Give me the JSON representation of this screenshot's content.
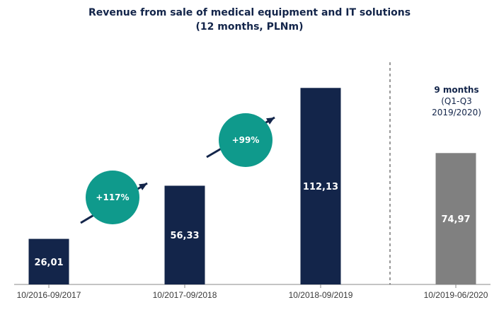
{
  "chart_data": {
    "type": "bar",
    "title": "Revenue from sale of medical equipment and IT solutions",
    "subtitle": "(12 months, PLNm)",
    "xlabel": "",
    "ylabel": "",
    "ylim": [
      0,
      130
    ],
    "grid": false,
    "categories": [
      "10/2016-09/2017",
      "10/2017-09/2018",
      "10/2018-09/2019",
      "10/2019-06/2020"
    ],
    "values": [
      26.01,
      56.33,
      112.13,
      74.97
    ],
    "value_labels": [
      "26,01",
      "56,33",
      "112,13",
      "74,97"
    ],
    "bar_colors": [
      "#13254a",
      "#13254a",
      "#13254a",
      "#808080"
    ],
    "growth_annotations": [
      {
        "label": "+117%",
        "between": [
          "10/2016-09/2017",
          "10/2017-09/2018"
        ]
      },
      {
        "label": "+99%",
        "between": [
          "10/2017-09/2018",
          "10/2018-09/2019"
        ]
      }
    ],
    "partial_period_note": {
      "lines": [
        "9 months",
        "(Q1-Q3",
        "2019/2020)"
      ]
    }
  },
  "colors": {
    "navy": "#13254a",
    "grey": "#808080",
    "teal": "#0f9a8c",
    "axis": "#8a8a8a"
  }
}
